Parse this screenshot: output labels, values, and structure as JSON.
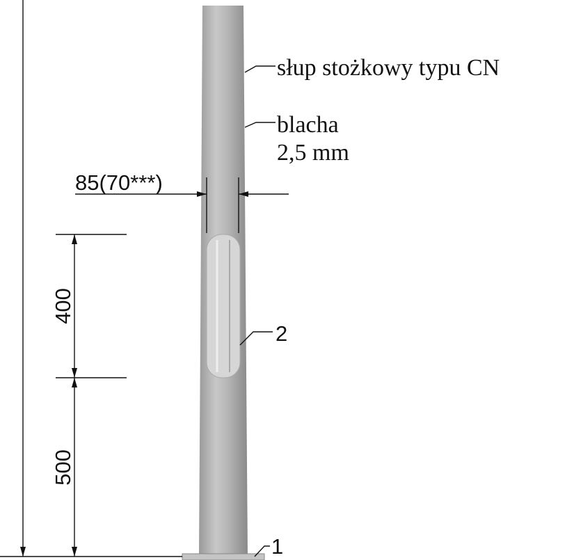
{
  "labels": {
    "pole": "słup stożkowy typu CN",
    "sheet": "blacha",
    "thickness": "2,5 mm",
    "diameter": "85(70***)",
    "door_height": "400",
    "door_offset": "500",
    "door_marker": "2",
    "base_marker": "1"
  }
}
